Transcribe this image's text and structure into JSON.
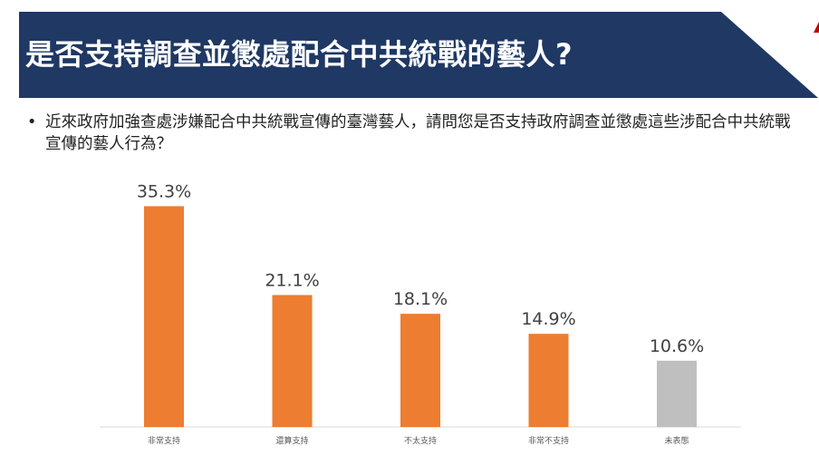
{
  "title": "是否支持調查並懲處配合中共統戰的藝人?",
  "question": {
    "bullet": "•",
    "text": "近來政府加強查處涉嫌配合中共統戰宣傳的臺灣藝人，請問您是否支持政府調查並懲處這些涉配合中共統戰宣傳的藝人行為？"
  },
  "colors": {
    "banner": "#1f3864",
    "bar_primary": "#ed7d31",
    "bar_neutral": "#bfbfbf",
    "axis": "#d9d9d9",
    "label": "#404040",
    "corner_mark": "#c00000"
  },
  "chart_data": {
    "type": "bar",
    "categories": [
      "非常支持",
      "還算支持",
      "不太支持",
      "非常不支持",
      "未表態"
    ],
    "values": [
      35.3,
      21.1,
      18.1,
      14.9,
      10.6
    ],
    "data_labels": [
      "35.3%",
      "21.1%",
      "18.1%",
      "14.9%",
      "10.6%"
    ],
    "bar_colors": [
      "#ed7d31",
      "#ed7d31",
      "#ed7d31",
      "#ed7d31",
      "#bfbfbf"
    ],
    "unit": "%",
    "ylim": [
      0,
      40
    ],
    "grid": false,
    "legend": "none",
    "title": "",
    "xlabel": "",
    "ylabel": ""
  }
}
